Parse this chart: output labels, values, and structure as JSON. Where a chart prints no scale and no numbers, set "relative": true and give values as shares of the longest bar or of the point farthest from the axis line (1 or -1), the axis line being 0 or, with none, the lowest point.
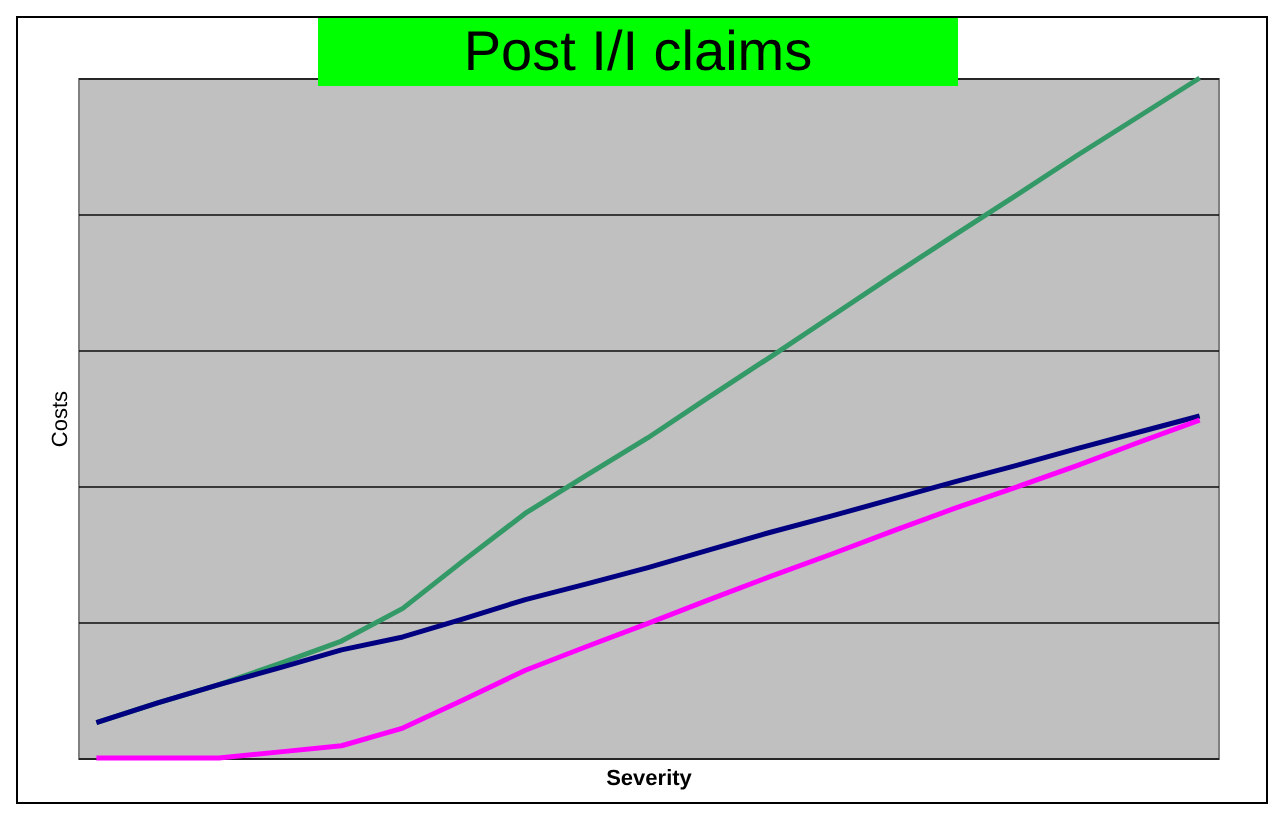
{
  "chart_data": {
    "type": "line",
    "title": "Post I/I claims",
    "xlabel": "Severity",
    "ylabel": "Costs",
    "relative": true,
    "grid": "y",
    "legend": false,
    "marker": "none",
    "line_style": "solid",
    "categories": [
      null,
      null,
      null,
      null,
      null,
      null,
      null,
      null,
      null,
      null,
      null,
      null,
      null,
      null,
      null,
      null,
      null,
      null,
      null
    ],
    "series": [
      {
        "color": "#339966",
        "values": [
          0.052,
          0.081,
          0.108,
          0.139,
          0.172,
          0.22,
          0.291,
          0.36,
          0.416,
          0.471,
          0.531,
          0.59,
          0.65,
          0.71,
          0.769,
          0.827,
          0.886,
          0.943,
          1
        ]
      },
      {
        "color": "#000080",
        "values": [
          0.052,
          0.081,
          0.108,
          0.133,
          0.159,
          0.178,
          0.205,
          0.233,
          0.256,
          0.28,
          0.306,
          0.332,
          0.356,
          0.381,
          0.406,
          0.43,
          0.455,
          0.479,
          0.503
        ]
      },
      {
        "color": "#ff00ff",
        "values": [
          0,
          0,
          0,
          0.009,
          0.018,
          0.044,
          0.086,
          0.129,
          0.164,
          0.198,
          0.233,
          0.267,
          0.3,
          0.334,
          0.367,
          0.398,
          0.43,
          0.464,
          0.497
        ]
      }
    ]
  }
}
